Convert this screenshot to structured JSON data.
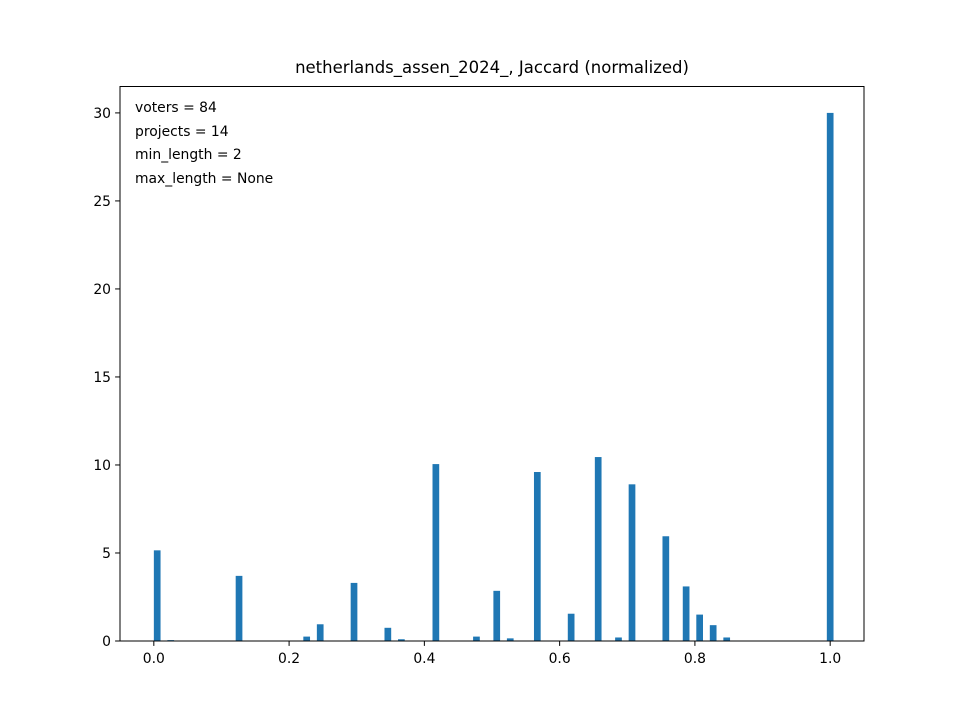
{
  "chart_data": {
    "type": "bar",
    "title": "netherlands_assen_2024_, Jaccard (normalized)",
    "xlabel": "",
    "ylabel": "",
    "xlim": [
      -0.05,
      1.05
    ],
    "ylim": [
      0,
      31.5
    ],
    "grid": false,
    "bar_width": 0.0099,
    "bar_color": "#1f77b4",
    "x_ticks": [
      0.0,
      0.2,
      0.4,
      0.6,
      0.8,
      1.0
    ],
    "x_tick_labels": [
      "0.0",
      "0.2",
      "0.4",
      "0.6",
      "0.8",
      "1.0"
    ],
    "y_ticks": [
      0,
      5,
      10,
      15,
      20,
      25,
      30
    ],
    "y_tick_labels": [
      "0",
      "5",
      "10",
      "15",
      "20",
      "25",
      "30"
    ],
    "annotations": [
      "voters = 84",
      "projects = 14",
      "min_length = 2",
      "max_length = None"
    ],
    "bars": [
      {
        "x": 0.005,
        "y": 5.15
      },
      {
        "x": 0.025,
        "y": 0.05
      },
      {
        "x": 0.126,
        "y": 3.7
      },
      {
        "x": 0.226,
        "y": 0.25
      },
      {
        "x": 0.246,
        "y": 0.95
      },
      {
        "x": 0.296,
        "y": 3.3
      },
      {
        "x": 0.346,
        "y": 0.75
      },
      {
        "x": 0.366,
        "y": 0.1
      },
      {
        "x": 0.417,
        "y": 10.05
      },
      {
        "x": 0.477,
        "y": 0.25
      },
      {
        "x": 0.507,
        "y": 2.85
      },
      {
        "x": 0.527,
        "y": 0.15
      },
      {
        "x": 0.567,
        "y": 9.6
      },
      {
        "x": 0.617,
        "y": 1.55
      },
      {
        "x": 0.657,
        "y": 10.45
      },
      {
        "x": 0.687,
        "y": 0.2
      },
      {
        "x": 0.707,
        "y": 8.9
      },
      {
        "x": 0.757,
        "y": 5.95
      },
      {
        "x": 0.787,
        "y": 3.1
      },
      {
        "x": 0.807,
        "y": 1.5
      },
      {
        "x": 0.827,
        "y": 0.9
      },
      {
        "x": 0.847,
        "y": 0.2
      },
      {
        "x": 1.0,
        "y": 30.0
      }
    ]
  }
}
